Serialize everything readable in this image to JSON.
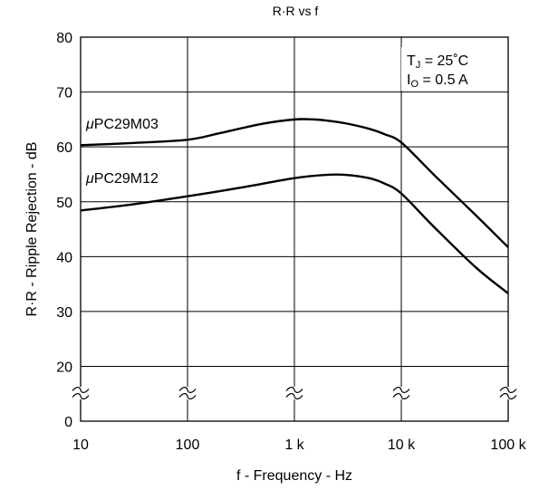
{
  "chart_data": {
    "type": "line",
    "title": "R·R vs f",
    "xlabel": "f - Frequency - Hz",
    "ylabel": "R·R - Ripple Rejection - dB",
    "x_scale": "log",
    "x_ticks": [
      {
        "value": 10,
        "label": "10"
      },
      {
        "value": 100,
        "label": "100"
      },
      {
        "value": 1000,
        "label": "1 k"
      },
      {
        "value": 10000,
        "label": "10 k"
      },
      {
        "value": 100000,
        "label": "100 k"
      }
    ],
    "xlim": [
      10,
      100000
    ],
    "y_ticks": [
      {
        "value": 0,
        "label": "0"
      },
      {
        "value": 20,
        "label": "20"
      },
      {
        "value": 30,
        "label": "30"
      },
      {
        "value": 40,
        "label": "40"
      },
      {
        "value": 50,
        "label": "50"
      },
      {
        "value": 60,
        "label": "60"
      },
      {
        "value": 70,
        "label": "70"
      },
      {
        "value": 80,
        "label": "80"
      }
    ],
    "ylim": [
      0,
      80
    ],
    "y_axis_break": "between 0 and 20",
    "grid": true,
    "conditions": {
      "tj_main": "T",
      "tj_sub": "J",
      "tj_rest": " = 25˚C",
      "io_main": "I",
      "io_sub": "O",
      "io_rest": " = 0.5 A"
    },
    "series": [
      {
        "name": "μPC29M03",
        "x": [
          10,
          30,
          100,
          200,
          500,
          1000,
          1500,
          2000,
          3000,
          5000,
          7000,
          10000,
          20000,
          50000,
          100000
        ],
        "y": [
          60.3,
          60.7,
          61.3,
          62.5,
          64.2,
          65.0,
          65.0,
          64.8,
          64.3,
          63.3,
          62.3,
          60.8,
          55.0,
          47.5,
          41.7
        ]
      },
      {
        "name": "μPC29M12",
        "x": [
          10,
          30,
          100,
          300,
          1000,
          2000,
          3000,
          5000,
          7000,
          10000,
          20000,
          50000,
          100000
        ],
        "y": [
          48.4,
          49.5,
          51.0,
          52.5,
          54.3,
          54.9,
          54.9,
          54.3,
          53.3,
          51.5,
          45.5,
          38.0,
          33.3
        ]
      }
    ],
    "series_labels": {
      "mu": "μ",
      "s1": "PC29M03",
      "s2": "PC29M12"
    }
  },
  "colors": {
    "line": "#000000",
    "grid": "#000000"
  }
}
